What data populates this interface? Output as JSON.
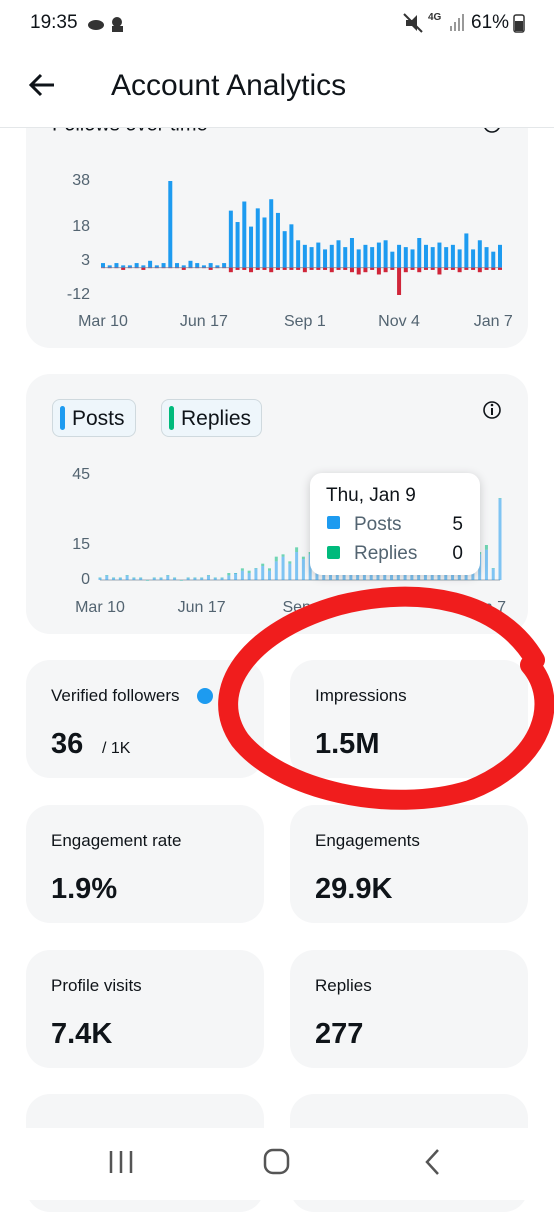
{
  "status_bar": {
    "time": "19:35",
    "network": "4G",
    "battery": "61%"
  },
  "header": {
    "title": "Account Analytics"
  },
  "chart_data": [
    {
      "type": "bar",
      "title": "Follows over time",
      "ylim": [
        -12,
        38
      ],
      "yticks": [
        -12,
        3,
        18,
        38
      ],
      "xlim": [
        0,
        59
      ],
      "xticks": [
        {
          "value": 0,
          "label": "Mar 10"
        },
        {
          "value": 15,
          "label": "Jun 17"
        },
        {
          "value": 30,
          "label": "Sep 1"
        },
        {
          "value": 44,
          "label": "Nov 4"
        },
        {
          "value": 58,
          "label": "Jan 7"
        }
      ],
      "grid": false,
      "stacked": false,
      "series": [
        {
          "color": "#1d9bf0",
          "values": [
            2,
            1,
            2,
            1,
            1,
            2,
            1,
            3,
            1,
            2,
            38,
            2,
            1,
            3,
            2,
            1,
            2,
            1,
            2,
            25,
            20,
            29,
            18,
            26,
            22,
            30,
            24,
            16,
            19,
            12,
            10,
            9,
            11,
            8,
            10,
            12,
            9,
            13,
            8,
            10,
            9,
            11,
            12,
            7,
            10,
            9,
            8,
            13,
            10,
            9,
            11,
            9,
            10,
            8,
            15,
            8,
            12,
            9,
            7,
            10
          ]
        },
        {
          "color": "#d0263a",
          "values": [
            0,
            0,
            0,
            -1,
            0,
            0,
            -1,
            0,
            0,
            0,
            0,
            0,
            -1,
            0,
            0,
            0,
            -1,
            0,
            0,
            -2,
            -1,
            -1,
            -2,
            -1,
            -1,
            -2,
            -1,
            -1,
            -1,
            -1,
            -2,
            -1,
            -1,
            -1,
            -2,
            -1,
            -1,
            -2,
            -3,
            -2,
            -1,
            -3,
            -2,
            -1,
            -12,
            -2,
            -1,
            -2,
            -1,
            -1,
            -3,
            -1,
            -1,
            -2,
            -1,
            -1,
            -2,
            -1,
            -1,
            -1
          ]
        }
      ]
    },
    {
      "type": "bar",
      "ylim": [
        0,
        45
      ],
      "yticks": [
        0,
        15,
        45
      ],
      "xlim": [
        0,
        59
      ],
      "xticks": [
        {
          "value": 0,
          "label": "Mar 10"
        },
        {
          "value": 15,
          "label": "Jun 17"
        },
        {
          "value": 30,
          "label": "Sep 1"
        },
        {
          "value": 57,
          "label": "Jan 7"
        }
      ],
      "grid": false,
      "stacked": true,
      "series": [
        {
          "name": "Posts",
          "color": "#1d9bf0",
          "values": [
            1,
            2,
            1,
            1,
            2,
            1,
            1,
            0,
            1,
            1,
            2,
            1,
            0,
            1,
            1,
            1,
            2,
            1,
            1,
            2,
            3,
            4,
            3,
            5,
            6,
            4,
            8,
            10,
            7,
            12,
            9,
            11,
            14,
            8,
            10,
            12,
            9,
            13,
            7,
            10,
            11,
            8,
            9,
            12,
            10,
            8,
            11,
            9,
            13,
            10,
            8,
            11,
            9,
            12,
            10,
            9,
            11,
            13,
            5,
            35
          ]
        },
        {
          "name": "Replies",
          "color": "#00ba7c",
          "values": [
            0,
            0,
            0,
            0,
            0,
            0,
            0,
            0,
            0,
            0,
            0,
            0,
            0,
            0,
            0,
            0,
            0,
            0,
            0,
            1,
            0,
            1,
            1,
            0,
            1,
            1,
            2,
            1,
            1,
            2,
            1,
            1,
            2,
            1,
            1,
            2,
            1,
            1,
            1,
            2,
            1,
            1,
            2,
            1,
            1,
            2,
            1,
            1,
            2,
            1,
            1,
            2,
            1,
            1,
            2,
            1,
            1,
            2,
            0,
            0
          ]
        }
      ],
      "tooltip": {
        "date": "Thu, Jan 9",
        "rows": [
          {
            "label": "Posts",
            "value": "5"
          },
          {
            "label": "Replies",
            "value": "0"
          }
        ]
      }
    }
  ],
  "stats": [
    {
      "label": "Verified followers",
      "value": "36",
      "total": "/ 1K"
    },
    {
      "label": "Impressions",
      "value": "1.5M"
    },
    {
      "label": "Engagement rate",
      "value": "1.9%"
    },
    {
      "label": "Engagements",
      "value": "29.9K"
    },
    {
      "label": "Profile visits",
      "value": "7.4K"
    },
    {
      "label": "Replies",
      "value": "277"
    }
  ]
}
